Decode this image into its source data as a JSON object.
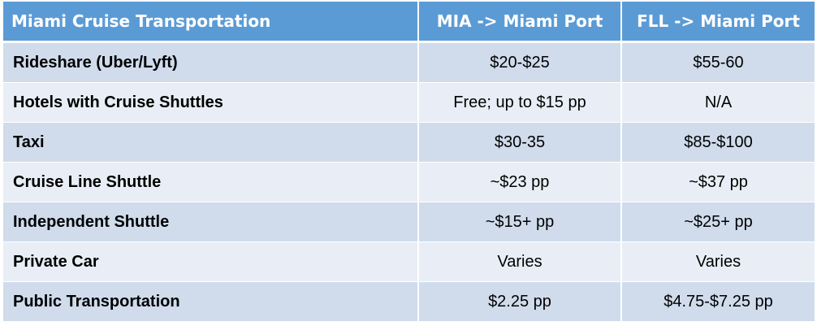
{
  "header": {
    "col1": "Miami Cruise Transportation",
    "col2": "MIA -> Miami Port",
    "col3": "FLL -> Miami Port"
  },
  "colors": {
    "header_bg": "#5b9bd5",
    "row_odd_bg": "#d0dcec",
    "row_even_bg": "#e9eef6"
  },
  "rows": [
    {
      "label": "Rideshare (Uber/Lyft)",
      "mia": "$20-$25",
      "fll": "$55-60"
    },
    {
      "label": "Hotels with Cruise Shuttles",
      "mia": "Free; up to $15 pp",
      "fll": "N/A"
    },
    {
      "label": "Taxi",
      "mia": "$30-35",
      "fll": "$85-$100"
    },
    {
      "label": "Cruise Line Shuttle",
      "mia": "~$23 pp",
      "fll": "~$37 pp"
    },
    {
      "label": "Independent Shuttle",
      "mia": "~$15+ pp",
      "fll": "~$25+ pp"
    },
    {
      "label": "Private Car",
      "mia": "Varies",
      "fll": "Varies"
    },
    {
      "label": "Public Transportation",
      "mia": "$2.25 pp",
      "fll": "$4.75-$7.25 pp"
    }
  ]
}
